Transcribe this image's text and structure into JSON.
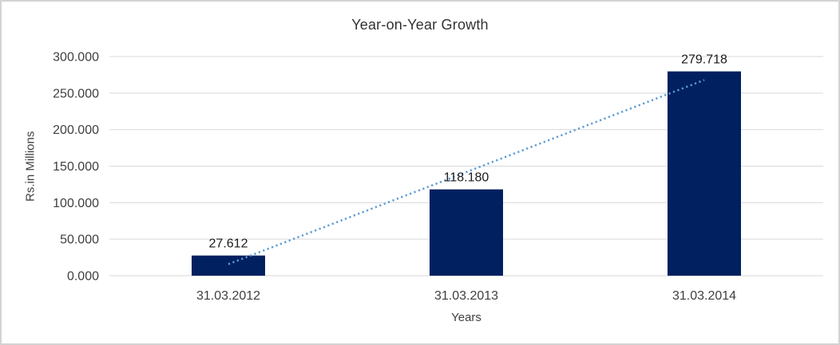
{
  "chart_data": {
    "type": "bar",
    "title": "Year-on-Year Growth",
    "xlabel": "Years",
    "ylabel": "Rs.in Millions",
    "categories": [
      "31.03.2012",
      "31.03.2013",
      "31.03.2014"
    ],
    "values": [
      27.612,
      118.18,
      279.718
    ],
    "value_labels": [
      "27.612",
      "118.180",
      "279.718"
    ],
    "yticks": [
      "0.000",
      "50.000",
      "100.000",
      "150.000",
      "200.000",
      "250.000",
      "300.000"
    ],
    "ylim": [
      0,
      300
    ],
    "grid": true,
    "legend": "none",
    "trendline": "linear-dotted",
    "colors": {
      "bar": "#002060",
      "trendline": "#5b9bd5",
      "gridline": "#d9d9d9",
      "axis_text": "#3f3f3f",
      "label_text": "#1a1a1a",
      "border": "#d3d3d3",
      "background": "#ffffff"
    }
  }
}
